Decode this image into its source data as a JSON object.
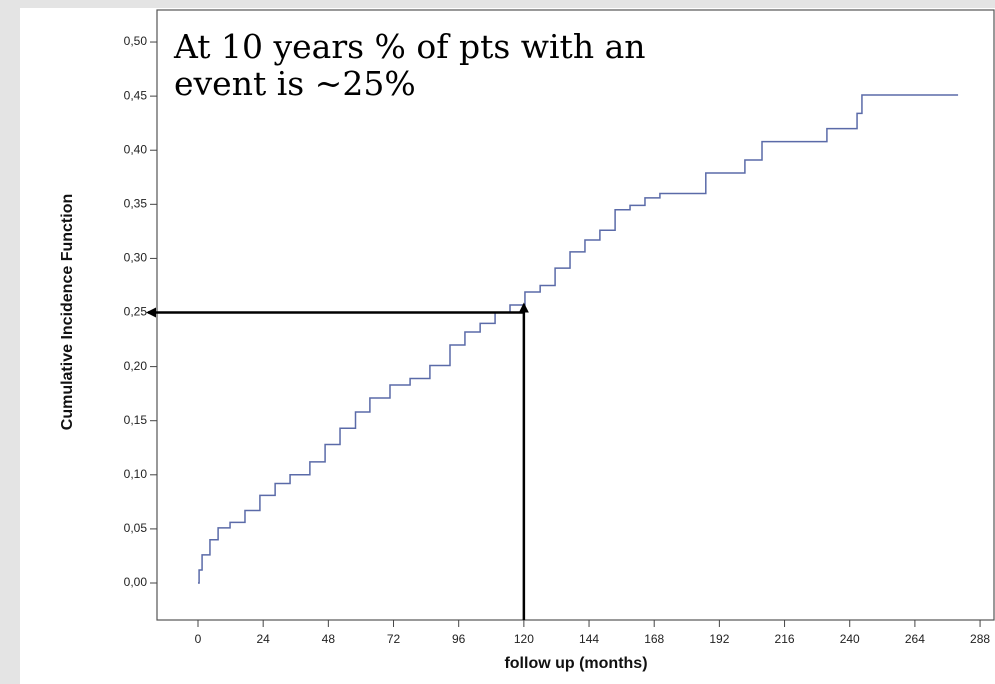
{
  "chart_data": {
    "type": "step",
    "annotation": [
      "At 10 years % of pts with an",
      "event is ~25%"
    ],
    "x_label": "follow up (months)",
    "y_label": "Cumulative Incidence Function",
    "color": "#5a6aa8",
    "x": [
      0,
      0.4,
      1.5,
      4.4,
      7.4,
      11.8,
      17.3,
      22.8,
      28.4,
      33.9,
      41.2,
      46.8,
      52.3,
      58,
      63.3,
      70.7,
      78.1,
      85.4,
      92.8,
      98.3,
      103.9,
      109.4,
      114.9,
      120.4,
      126,
      131.5,
      137,
      142.5,
      148,
      153.6,
      159.1,
      164.6,
      170.1,
      187,
      201.4,
      207.7,
      231.6,
      242.7,
      244.5,
      279.9
    ],
    "values": [
      0,
      0.012,
      0.026,
      0.04,
      0.051,
      0.056,
      0.067,
      0.081,
      0.092,
      0.1,
      0.112,
      0.128,
      0.143,
      0.158,
      0.171,
      0.183,
      0.189,
      0.201,
      0.22,
      0.232,
      0.24,
      0.25,
      0.257,
      0.269,
      0.275,
      0.291,
      0.306,
      0.317,
      0.326,
      0.345,
      0.349,
      0.356,
      0.36,
      0.379,
      0.391,
      0.408,
      0.42,
      0.434,
      0.451,
      0.451
    ],
    "arrow": {
      "x": 120,
      "y": 0.25
    },
    "xlim": [
      -15.1,
      293.5
    ],
    "ylim": [
      -0.0342,
      0.5296
    ],
    "xticks": [
      0,
      24,
      48,
      72,
      96,
      120,
      144,
      168,
      192,
      216,
      240,
      264,
      288
    ],
    "yticks": [
      {
        "value": 0,
        "label": "0,00"
      },
      {
        "value": 0.05,
        "label": "0,05"
      },
      {
        "value": 0.1,
        "label": "0,10"
      },
      {
        "value": 0.15,
        "label": "0,15"
      },
      {
        "value": 0.2,
        "label": "0,20"
      },
      {
        "value": 0.25,
        "label": "0,25"
      },
      {
        "value": 0.3,
        "label": "0,30"
      },
      {
        "value": 0.35,
        "label": "0,35"
      },
      {
        "value": 0.4,
        "label": "0,40"
      },
      {
        "value": 0.45,
        "label": "0,45"
      },
      {
        "value": 0.5,
        "label": "0,50"
      }
    ]
  }
}
